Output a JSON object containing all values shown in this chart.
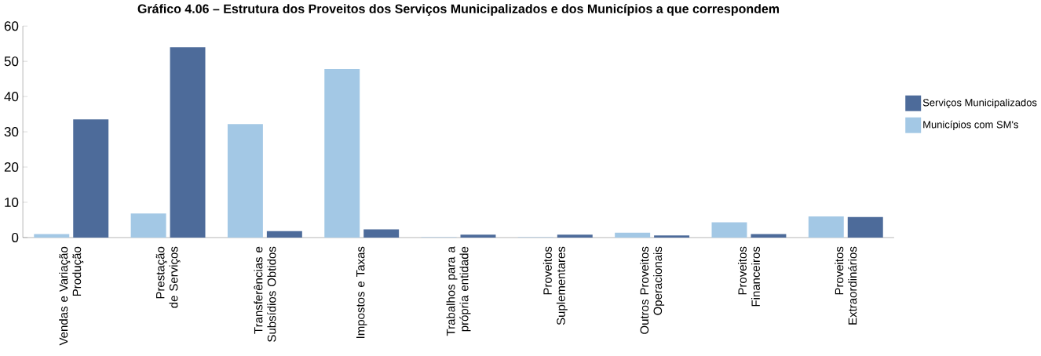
{
  "chart_data": {
    "type": "bar",
    "title": "Gráfico 4.06 – Estrutura dos Proveitos dos Serviços Municipalizados e dos Municípios a que correspondem",
    "categories": [
      "Vendas e Variação Produção",
      "Prestação de Serviços",
      "Transferências e Subsídios Obtidos",
      "Impostos e Taxas",
      "Trabalhos para a própria entidade",
      "Proveitos Suplementares",
      "Outros Proveitos Operacionais",
      "Proveitos Financeiros",
      "Proveitos Extraordinários"
    ],
    "series": [
      {
        "name": "Municípios com SM's",
        "color": "#a3c8e5",
        "values": [
          1.0,
          6.8,
          32.2,
          47.8,
          0.1,
          0.1,
          1.4,
          4.3,
          6.0
        ]
      },
      {
        "name": "Serviços Municipalizados",
        "color": "#4d6b9a",
        "values": [
          33.5,
          54.0,
          1.8,
          2.3,
          0.8,
          0.8,
          0.6,
          1.0,
          5.8
        ]
      }
    ],
    "ylim": [
      0,
      60
    ],
    "yticks": [
      0,
      10,
      20,
      30,
      40,
      50,
      60
    ],
    "legend": "right"
  }
}
